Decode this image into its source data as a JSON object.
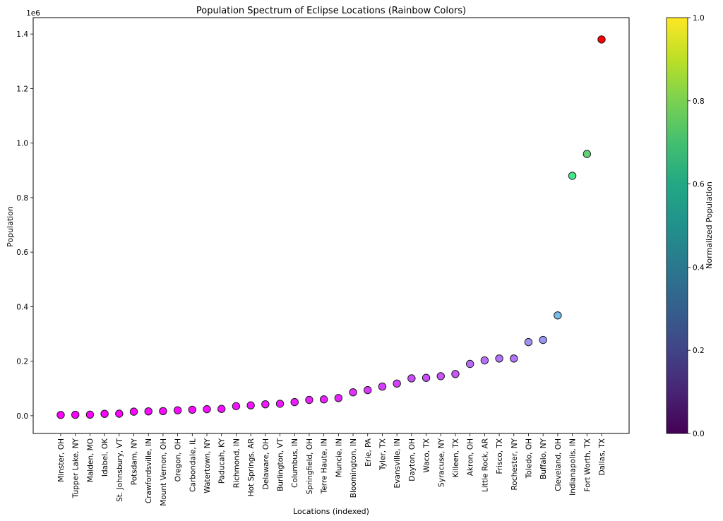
{
  "chart_data": {
    "type": "scatter",
    "title": "Population Spectrum of Eclipse Locations (Rainbow Colors)",
    "xlabel": "Locations (indexed)",
    "ylabel": "Population",
    "y_multiplier_label": "1e6",
    "colorbar_label": "Normalized Population",
    "colorbar_ticks": [
      "0.0",
      "0.2",
      "0.4",
      "0.6",
      "0.8",
      "1.0"
    ],
    "colormap_colorbar": "viridis",
    "colormap_points": "rainbow",
    "ylim": [
      -65000,
      1460000
    ],
    "yticks": [
      0,
      200000,
      400000,
      600000,
      800000,
      1000000,
      1200000,
      1400000
    ],
    "ytick_labels": [
      "0.0",
      "0.2",
      "0.4",
      "0.6",
      "0.8",
      "1.0",
      "1.2",
      "1.4"
    ],
    "grid": false,
    "categories": [
      "Minster, OH",
      "Tupper Lake, NY",
      "Malden, MO",
      "Idabel, OK",
      "St. Johnsbury, VT",
      "Potsdam, NY",
      "Crawfordsville, IN",
      "Mount Vernon, OH",
      "Oregon, OH",
      "Carbondale, IL",
      "Watertown, NY",
      "Paducah, KY",
      "Richmond, IN",
      "Hot Springs, AR",
      "Delaware, OH",
      "Burlington, VT",
      "Columbus, IN",
      "Springfield, OH",
      "Terre Haute, IN",
      "Muncie, IN",
      "Bloomington, IN",
      "Erie, PA",
      "Tyler, TX",
      "Evansville, IN",
      "Dayton, OH",
      "Waco, TX",
      "Syracuse, NY",
      "Killeen, TX",
      "Akron, OH",
      "Little Rock, AR",
      "Frisco, TX",
      "Rochester, NY",
      "Toledo, OH",
      "Buffalo, NY",
      "Cleveland, OH",
      "Indianapolis, IN",
      "Fort Worth, TX",
      "Dallas, TX"
    ],
    "values": [
      2900,
      3400,
      4000,
      7000,
      7500,
      15000,
      16000,
      17000,
      20000,
      22000,
      24000,
      25000,
      35000,
      38000,
      42000,
      44000,
      50000,
      58000,
      60000,
      65000,
      86000,
      94000,
      107000,
      118000,
      137000,
      139000,
      145000,
      153000,
      190000,
      203000,
      210000,
      210000,
      270000,
      278000,
      368000,
      880000,
      960000,
      1380000
    ]
  }
}
